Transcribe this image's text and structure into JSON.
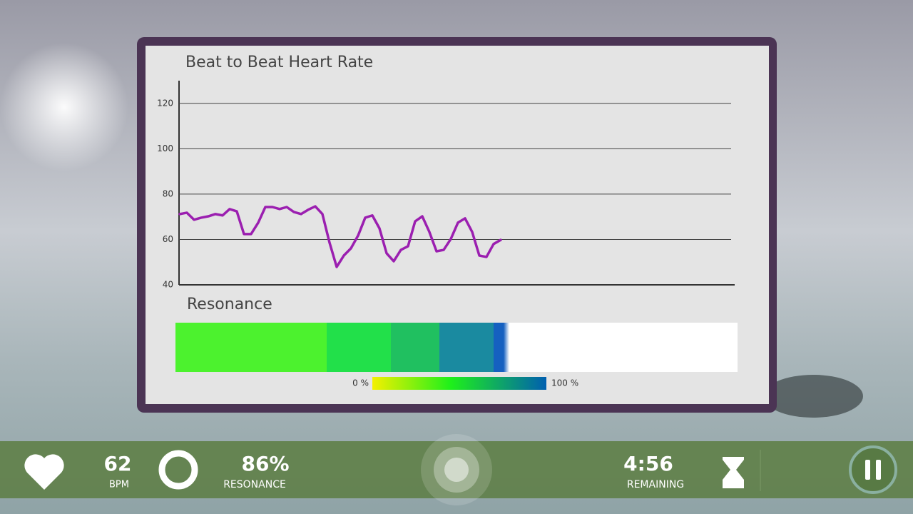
{
  "chart_data": {
    "type": "line",
    "title": "Beat to Beat Heart Rate",
    "ylim": [
      40,
      130
    ],
    "yticks": [
      40,
      60,
      80,
      100,
      120
    ],
    "grid": true,
    "color": "#9b1fb0",
    "values": [
      71.2,
      71.8,
      68.7,
      69.6,
      70.2,
      71.2,
      70.6,
      73.4,
      72.4,
      62.4,
      62.4,
      67.4,
      74.3,
      74.3,
      73.4,
      74.3,
      72.1,
      71.2,
      73.1,
      74.6,
      71.2,
      58.6,
      47.9,
      52.9,
      56.1,
      61.7,
      69.6,
      70.6,
      64.9,
      53.9,
      50.4,
      55.4,
      57.0,
      68.0,
      70.2,
      63.3,
      54.8,
      55.4,
      60.2,
      67.4,
      69.3,
      63.3,
      52.9,
      52.3,
      58.0,
      59.8
    ]
  },
  "resonance": {
    "title": "Resonance",
    "scale_min_label": "0 %",
    "scale_max_label": "100 %"
  },
  "status_bar": {
    "bpm": "62",
    "bpm_label": "BPM",
    "resonance": "86%",
    "resonance_label": "RESONANCE",
    "time": "4:56",
    "time_label": "REMAINING"
  }
}
